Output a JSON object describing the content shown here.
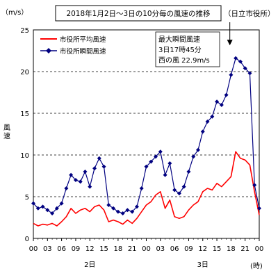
{
  "chart_data": {
    "type": "line",
    "title": "2018年1月2日～3日の10分毎の風速の推移",
    "station_label": "（日立市役所）",
    "y_unit_label": "（m/s）",
    "ylabel": "風速",
    "x_unit_label": "(時)",
    "day_labels": [
      {
        "label": "2日",
        "hour": 12
      },
      {
        "label": "3日",
        "hour": 36
      }
    ],
    "xlim": [
      0,
      48
    ],
    "ylim": [
      0,
      25
    ],
    "yticks": [
      0,
      5,
      10,
      15,
      20,
      25
    ],
    "ytick_labels": [
      "0",
      "5",
      "10",
      "15",
      "20",
      "25"
    ],
    "xticks": [
      0,
      3,
      6,
      9,
      12,
      15,
      18,
      21,
      24,
      27,
      30,
      33,
      36,
      39,
      42,
      45,
      48
    ],
    "xtick_labels": [
      "00",
      "03",
      "06",
      "09",
      "12",
      "15",
      "18",
      "21",
      "00",
      "03",
      "06",
      "09",
      "12",
      "15",
      "18",
      "21",
      "00"
    ],
    "grid": "horizontal dashed",
    "legend_position": "top-left",
    "colors": {
      "average": "#ff0000",
      "gust": "#000080",
      "grid": "#000000"
    },
    "series": [
      {
        "name": "市役所平均風速",
        "color": "#ff0000",
        "marker": "none",
        "x": [
          0,
          1,
          2,
          3,
          4,
          5,
          6,
          7,
          8,
          9,
          10,
          11,
          12,
          13,
          14,
          15,
          16,
          17,
          18,
          19,
          20,
          21,
          22,
          23,
          24,
          25,
          26,
          27,
          28,
          29,
          30,
          31,
          32,
          33,
          34,
          35,
          36,
          37,
          38,
          39,
          40,
          41,
          42,
          43,
          44,
          45,
          46,
          47,
          48
        ],
        "values": [
          1.8,
          1.5,
          1.7,
          1.6,
          1.8,
          1.5,
          2.0,
          2.6,
          3.6,
          3.0,
          3.4,
          3.6,
          3.2,
          3.8,
          4.0,
          3.4,
          2.0,
          2.2,
          2.0,
          1.7,
          2.2,
          1.8,
          2.4,
          3.2,
          4.0,
          4.4,
          5.2,
          5.6,
          3.6,
          4.6,
          2.6,
          2.4,
          2.6,
          3.4,
          4.0,
          4.4,
          5.6,
          6.0,
          5.8,
          6.6,
          6.2,
          6.8,
          7.4,
          10.4,
          9.6,
          9.4,
          8.8,
          5.6,
          2.8
        ]
      },
      {
        "name": "市役所瞬間風速",
        "color": "#000080",
        "marker": "diamond",
        "x": [
          0,
          1,
          2,
          3,
          4,
          5,
          6,
          7,
          8,
          9,
          10,
          11,
          12,
          13,
          14,
          15,
          16,
          17,
          18,
          19,
          20,
          21,
          22,
          23,
          24,
          25,
          26,
          27,
          28,
          29,
          30,
          31,
          32,
          33,
          34,
          35,
          36,
          37,
          38,
          39,
          40,
          41,
          42,
          43,
          44,
          45,
          46,
          47,
          48
        ],
        "values": [
          4.2,
          3.6,
          3.8,
          3.4,
          3.0,
          3.6,
          4.2,
          6.0,
          7.6,
          7.0,
          6.8,
          8.0,
          6.2,
          8.4,
          9.6,
          8.6,
          4.0,
          3.6,
          3.2,
          3.0,
          3.4,
          3.2,
          3.8,
          6.0,
          8.6,
          9.2,
          9.8,
          10.4,
          7.6,
          9.0,
          5.8,
          5.4,
          6.2,
          8.0,
          9.8,
          10.6,
          12.8,
          14.0,
          14.6,
          16.4,
          16.0,
          17.2,
          19.6,
          21.6,
          21.2,
          20.4,
          19.8,
          6.4,
          3.6
        ]
      }
    ],
    "annotation": {
      "lines": [
        "最大瞬間風速",
        "3日17時45分",
        "西の風 22.9m/s"
      ],
      "peak_x": 41.75,
      "peak_y": 22.9
    }
  }
}
